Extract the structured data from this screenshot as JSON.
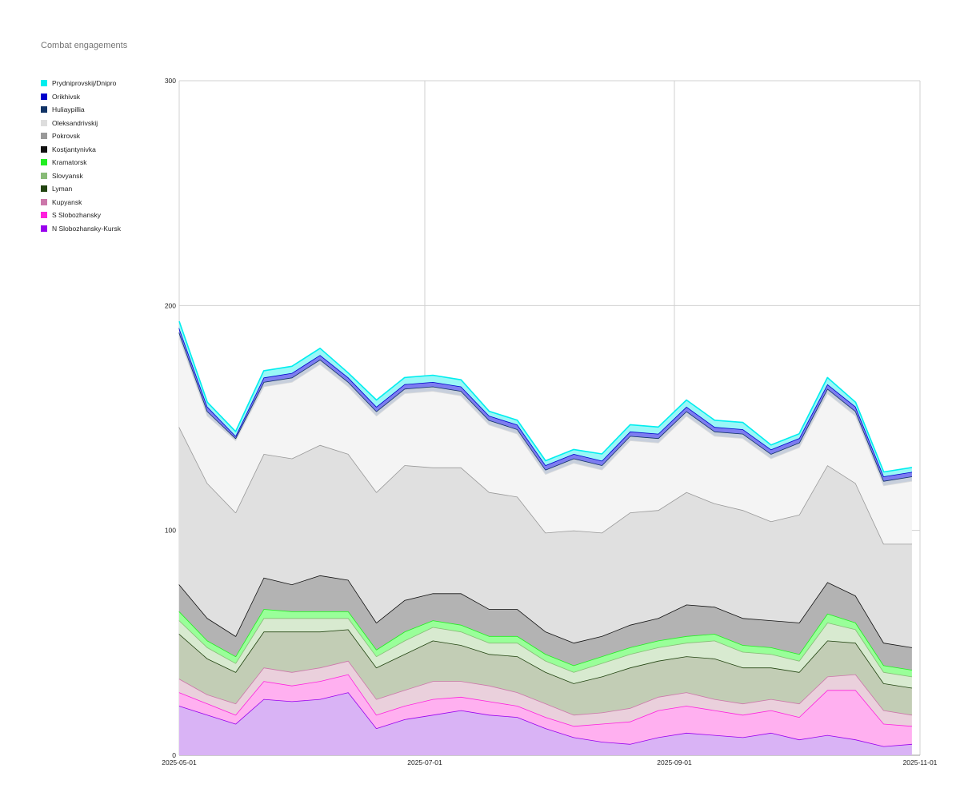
{
  "chart_data": {
    "type": "area",
    "stacked": true,
    "title": "Combat engagements",
    "xlabel": "",
    "ylabel": "",
    "x_range": [
      "2025-05-01",
      "2025-11-01"
    ],
    "ylim": [
      0,
      300
    ],
    "y_ticks": [
      0,
      100,
      200,
      300
    ],
    "x_ticks": [
      "2025-05-01",
      "2025-07-01",
      "2025-09-01",
      "2025-11-01"
    ],
    "grid": true,
    "legend": "left",
    "x_step": "weekly",
    "x": [
      "2025-05-01",
      "2025-05-08",
      "2025-05-15",
      "2025-05-22",
      "2025-05-29",
      "2025-06-05",
      "2025-06-12",
      "2025-06-19",
      "2025-06-26",
      "2025-07-03",
      "2025-07-10",
      "2025-07-17",
      "2025-07-24",
      "2025-07-31",
      "2025-08-07",
      "2025-08-14",
      "2025-08-21",
      "2025-08-28",
      "2025-09-04",
      "2025-09-11",
      "2025-09-18",
      "2025-09-25",
      "2025-10-02",
      "2025-10-09",
      "2025-10-16",
      "2025-10-23",
      "2025-10-30"
    ],
    "series": [
      {
        "name": "N Slobozhansky-Kursk",
        "color": "#9900ee",
        "fill": "#d9b3f5",
        "values": [
          22,
          18,
          14,
          25,
          24,
          25,
          28,
          12,
          16,
          18,
          20,
          18,
          17,
          12,
          8,
          6,
          5,
          8,
          10,
          9,
          8,
          10,
          7,
          9,
          7,
          4,
          5
        ]
      },
      {
        "name": "S Slobozhansky",
        "color": "#ff22dd",
        "fill": "#ffb0f0",
        "values": [
          6,
          5,
          4,
          8,
          7,
          8,
          8,
          6,
          6,
          7,
          6,
          6,
          5,
          5,
          5,
          8,
          10,
          12,
          12,
          11,
          10,
          10,
          10,
          20,
          22,
          10,
          8
        ]
      },
      {
        "name": "Kupyansk",
        "color": "#cc77aa",
        "fill": "#ead0dc",
        "values": [
          6,
          4,
          5,
          6,
          6,
          6,
          6,
          7,
          7,
          8,
          7,
          7,
          6,
          6,
          5,
          5,
          6,
          6,
          6,
          5,
          5,
          5,
          6,
          6,
          7,
          6,
          5
        ]
      },
      {
        "name": "Lyman",
        "color": "#224411",
        "fill": "#c2cdb5",
        "values": [
          20,
          16,
          14,
          16,
          18,
          16,
          14,
          14,
          16,
          18,
          16,
          14,
          16,
          14,
          14,
          16,
          18,
          16,
          16,
          18,
          16,
          14,
          14,
          16,
          14,
          12,
          12
        ]
      },
      {
        "name": "Slovyansk",
        "color": "#88bb77",
        "fill": "#d8ead0",
        "values": [
          6,
          5,
          4,
          6,
          6,
          6,
          5,
          5,
          6,
          6,
          6,
          5,
          6,
          5,
          5,
          6,
          6,
          6,
          6,
          8,
          7,
          6,
          5,
          8,
          6,
          5,
          5
        ]
      },
      {
        "name": "Kramatorsk",
        "color": "#22ee22",
        "fill": "#99ff99",
        "values": [
          4,
          3,
          3,
          4,
          3,
          3,
          3,
          3,
          4,
          3,
          3,
          3,
          3,
          3,
          3,
          3,
          3,
          3,
          3,
          3,
          3,
          3,
          3,
          4,
          3,
          3,
          3
        ]
      },
      {
        "name": "Kostjantynivka",
        "color": "#111111",
        "fill": "#b3b3b3",
        "values": [
          12,
          10,
          9,
          14,
          12,
          16,
          14,
          12,
          14,
          12,
          14,
          12,
          12,
          10,
          10,
          9,
          10,
          10,
          14,
          12,
          12,
          12,
          14,
          14,
          12,
          10,
          10
        ]
      },
      {
        "name": "Pokrovsk",
        "color": "#999999",
        "fill": "#e0e0e0",
        "values": [
          70,
          60,
          55,
          55,
          56,
          58,
          56,
          58,
          60,
          56,
          56,
          52,
          50,
          44,
          50,
          46,
          50,
          48,
          50,
          46,
          48,
          44,
          48,
          52,
          50,
          44,
          46
        ]
      },
      {
        "name": "Oleksandrivskij",
        "color": "#dddddd",
        "fill": "#f4f4f4",
        "values": [
          40,
          30,
          32,
          30,
          34,
          36,
          30,
          34,
          32,
          34,
          32,
          30,
          28,
          26,
          30,
          28,
          32,
          30,
          34,
          30,
          32,
          28,
          30,
          32,
          30,
          26,
          28
        ]
      },
      {
        "name": "Huliaypillia",
        "color": "#113366",
        "fill": "#c7cfdc",
        "values": [
          2,
          2,
          1,
          2,
          2,
          2,
          2,
          2,
          2,
          2,
          2,
          2,
          2,
          2,
          2,
          2,
          2,
          2,
          2,
          2,
          2,
          2,
          2,
          2,
          2,
          2,
          2
        ]
      },
      {
        "name": "Orikhivsk",
        "color": "#0000cc",
        "fill": "#7d7df0",
        "values": [
          2,
          2,
          1,
          2,
          2,
          2,
          2,
          2,
          2,
          2,
          2,
          2,
          2,
          2,
          2,
          2,
          2,
          2,
          2,
          2,
          2,
          2,
          2,
          2,
          2,
          2,
          2
        ]
      },
      {
        "name": "Prydniprovskij/Dnipro",
        "color": "#00eeee",
        "fill": "#99f7f7",
        "values": [
          3,
          2,
          2,
          3,
          3,
          3,
          2,
          3,
          3,
          3,
          3,
          2,
          2,
          2,
          2,
          3,
          3,
          3,
          3,
          3,
          3,
          2,
          2,
          3,
          2,
          2,
          2
        ]
      }
    ]
  }
}
